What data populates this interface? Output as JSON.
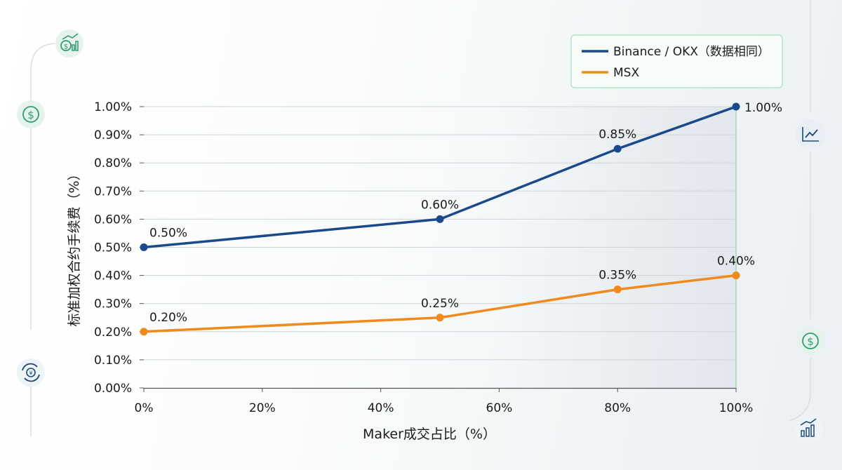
{
  "chart_data": {
    "type": "line",
    "title": "",
    "xlabel": "Maker成交占比（%）",
    "ylabel": "标准加权合约手续费（%）",
    "x": [
      0,
      50,
      80,
      100
    ],
    "x_ticks": [
      "0%",
      "20%",
      "40%",
      "60%",
      "80%",
      "100%"
    ],
    "x_tick_values": [
      0,
      20,
      40,
      60,
      80,
      100
    ],
    "xlim": [
      0,
      100
    ],
    "y_ticks": [
      "0.00%",
      "0.10%",
      "0.20%",
      "0.30%",
      "0.40%",
      "0.50%",
      "0.60%",
      "0.70%",
      "0.80%",
      "0.90%",
      "1.00%"
    ],
    "y_tick_values": [
      0,
      0.1,
      0.2,
      0.3,
      0.4,
      0.5,
      0.6,
      0.7,
      0.8,
      0.9,
      1.0
    ],
    "ylim": [
      0,
      1.0
    ],
    "grid": "horizontal",
    "legend_position": "top-right",
    "series": [
      {
        "name": "Binance / OKX（数据相同）",
        "color": "#1b4a8c",
        "values": [
          0.5,
          0.6,
          0.85,
          1.0
        ],
        "labels": [
          "0.50%",
          "0.60%",
          "0.85%",
          "1.00%"
        ]
      },
      {
        "name": "MSX",
        "color": "#f08a1c",
        "values": [
          0.2,
          0.25,
          0.35,
          0.4
        ],
        "labels": [
          "0.20%",
          "0.25%",
          "0.35%",
          "0.40%"
        ]
      }
    ]
  },
  "decor": {
    "accent": "#2e9d6e",
    "icons": [
      "dollar-chart-icon",
      "dollar-coin-icon",
      "cycle-coin-icon",
      "trend-line-icon",
      "dollar-coin-icon",
      "bar-chart-growth-icon"
    ]
  }
}
